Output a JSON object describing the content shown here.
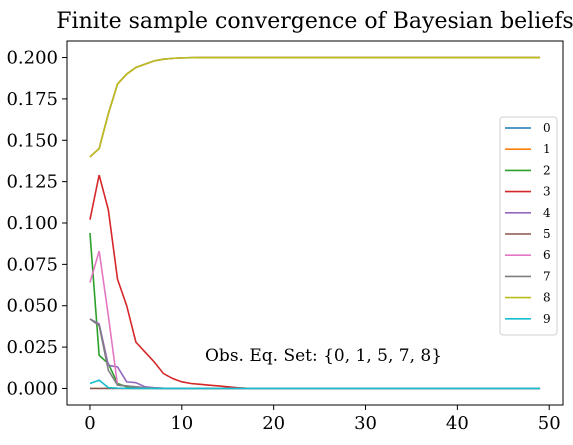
{
  "chart_data": {
    "type": "line",
    "title": "Finite sample convergence of Bayesian beliefs",
    "xlabel": "",
    "ylabel": "",
    "xlim": [
      -2.5,
      51.5
    ],
    "ylim": [
      -0.01,
      0.21
    ],
    "xticks": [
      0,
      10,
      20,
      30,
      40,
      50
    ],
    "yticks": [
      0.0,
      0.025,
      0.05,
      0.075,
      0.1,
      0.125,
      0.15,
      0.175,
      0.2
    ],
    "ytick_labels": [
      "0.000",
      "0.025",
      "0.050",
      "0.075",
      "0.100",
      "0.125",
      "0.150",
      "0.175",
      "0.200"
    ],
    "xtick_labels": [
      "0",
      "10",
      "20",
      "30",
      "40",
      "50"
    ],
    "grid": false,
    "legend_position": "right",
    "annotation": "Obs. Eq. Set: {0, 1, 5, 7, 8}",
    "x_start": 0,
    "series": [
      {
        "name": "0",
        "color": "#1f77b4",
        "values": [
          0.14,
          0.145,
          0.166,
          0.184,
          0.19,
          0.194,
          0.196,
          0.198,
          0.199,
          0.1995,
          0.1998,
          0.1999,
          0.2,
          0.2,
          0.2,
          0.2,
          0.2,
          0.2,
          0.2,
          0.2,
          0.2,
          0.2,
          0.2,
          0.2,
          0.2,
          0.2,
          0.2,
          0.2,
          0.2,
          0.2,
          0.2,
          0.2,
          0.2,
          0.2,
          0.2,
          0.2,
          0.2,
          0.2,
          0.2,
          0.2,
          0.2,
          0.2,
          0.2,
          0.2,
          0.2,
          0.2,
          0.2,
          0.2,
          0.2,
          0.2
        ]
      },
      {
        "name": "1",
        "color": "#ff7f0e",
        "values": [
          0.14,
          0.145,
          0.166,
          0.184,
          0.19,
          0.194,
          0.196,
          0.198,
          0.199,
          0.1995,
          0.1998,
          0.1999,
          0.2,
          0.2,
          0.2,
          0.2,
          0.2,
          0.2,
          0.2,
          0.2,
          0.2,
          0.2,
          0.2,
          0.2,
          0.2,
          0.2,
          0.2,
          0.2,
          0.2,
          0.2,
          0.2,
          0.2,
          0.2,
          0.2,
          0.2,
          0.2,
          0.2,
          0.2,
          0.2,
          0.2,
          0.2,
          0.2,
          0.2,
          0.2,
          0.2,
          0.2,
          0.2,
          0.2,
          0.2,
          0.2
        ]
      },
      {
        "name": "2",
        "color": "#2ca02c",
        "values": [
          0.094,
          0.02,
          0.015,
          0.003,
          0.001,
          0.0005,
          0.0002,
          0.0001,
          0,
          0,
          0,
          0,
          0,
          0,
          0,
          0,
          0,
          0,
          0,
          0,
          0,
          0,
          0,
          0,
          0,
          0,
          0,
          0,
          0,
          0,
          0,
          0,
          0,
          0,
          0,
          0,
          0,
          0,
          0,
          0,
          0,
          0,
          0,
          0,
          0,
          0,
          0,
          0,
          0,
          0
        ]
      },
      {
        "name": "3",
        "color": "#d62728",
        "values": [
          0.102,
          0.129,
          0.108,
          0.066,
          0.05,
          0.028,
          0.022,
          0.016,
          0.009,
          0.006,
          0.004,
          0.003,
          0.0025,
          0.002,
          0.0015,
          0.001,
          0.0005,
          0.0002,
          0.0001,
          0,
          0,
          0,
          0,
          0,
          0,
          0,
          0,
          0,
          0,
          0,
          0,
          0,
          0,
          0,
          0,
          0,
          0,
          0,
          0,
          0,
          0,
          0,
          0,
          0,
          0,
          0,
          0,
          0,
          0,
          0
        ]
      },
      {
        "name": "4",
        "color": "#9467bd",
        "values": [
          0.042,
          0.039,
          0.014,
          0.013,
          0.004,
          0.0035,
          0.001,
          0.0005,
          0.0002,
          0.0001,
          0,
          0,
          0,
          0,
          0,
          0,
          0,
          0,
          0,
          0,
          0,
          0,
          0,
          0,
          0,
          0,
          0,
          0,
          0,
          0,
          0,
          0,
          0,
          0,
          0,
          0,
          0,
          0,
          0,
          0,
          0,
          0,
          0,
          0,
          0,
          0,
          0,
          0,
          0,
          0
        ]
      },
      {
        "name": "5",
        "color": "#8c564b",
        "values": [
          0,
          0,
          0,
          0,
          0,
          0,
          0,
          0,
          0,
          0,
          0,
          0,
          0,
          0,
          0,
          0,
          0,
          0,
          0,
          0,
          0,
          0,
          0,
          0,
          0,
          0,
          0,
          0,
          0,
          0,
          0,
          0,
          0,
          0,
          0,
          0,
          0,
          0,
          0,
          0,
          0,
          0,
          0,
          0,
          0,
          0,
          0,
          0,
          0,
          0
        ]
      },
      {
        "name": "6",
        "color": "#e377c2",
        "values": [
          0.064,
          0.083,
          0.044,
          0.002,
          0.0015,
          0.001,
          0.0005,
          0.0002,
          0.0001,
          0,
          0,
          0,
          0,
          0,
          0,
          0,
          0,
          0,
          0,
          0,
          0,
          0,
          0,
          0,
          0,
          0,
          0,
          0,
          0,
          0,
          0,
          0,
          0,
          0,
          0,
          0,
          0,
          0,
          0,
          0,
          0,
          0,
          0,
          0,
          0,
          0,
          0,
          0,
          0,
          0
        ]
      },
      {
        "name": "7",
        "color": "#7f7f7f",
        "values": [
          0.042,
          0.038,
          0.011,
          0.002,
          0.0015,
          0.001,
          0.0005,
          0.0002,
          0.0001,
          0,
          0,
          0,
          0,
          0,
          0,
          0,
          0,
          0,
          0,
          0,
          0,
          0,
          0,
          0,
          0,
          0,
          0,
          0,
          0,
          0,
          0,
          0,
          0,
          0,
          0,
          0,
          0,
          0,
          0,
          0,
          0,
          0,
          0,
          0,
          0,
          0,
          0,
          0,
          0,
          0
        ]
      },
      {
        "name": "8",
        "color": "#bcbd22",
        "values": [
          0.14,
          0.145,
          0.166,
          0.184,
          0.19,
          0.194,
          0.196,
          0.198,
          0.199,
          0.1995,
          0.1998,
          0.1999,
          0.2,
          0.2,
          0.2,
          0.2,
          0.2,
          0.2,
          0.2,
          0.2,
          0.2,
          0.2,
          0.2,
          0.2,
          0.2,
          0.2,
          0.2,
          0.2,
          0.2,
          0.2,
          0.2,
          0.2,
          0.2,
          0.2,
          0.2,
          0.2,
          0.2,
          0.2,
          0.2,
          0.2,
          0.2,
          0.2,
          0.2,
          0.2,
          0.2,
          0.2,
          0.2,
          0.2,
          0.2,
          0.2
        ]
      },
      {
        "name": "9",
        "color": "#17becf",
        "values": [
          0.003,
          0.005,
          0.0005,
          0.0002,
          0.0001,
          0,
          0,
          0,
          0,
          0,
          0,
          0,
          0,
          0,
          0,
          0,
          0,
          0,
          0,
          0,
          0,
          0,
          0,
          0,
          0,
          0,
          0,
          0,
          0,
          0,
          0,
          0,
          0,
          0,
          0,
          0,
          0,
          0,
          0,
          0,
          0,
          0,
          0,
          0,
          0,
          0,
          0,
          0,
          0,
          0
        ]
      }
    ]
  }
}
